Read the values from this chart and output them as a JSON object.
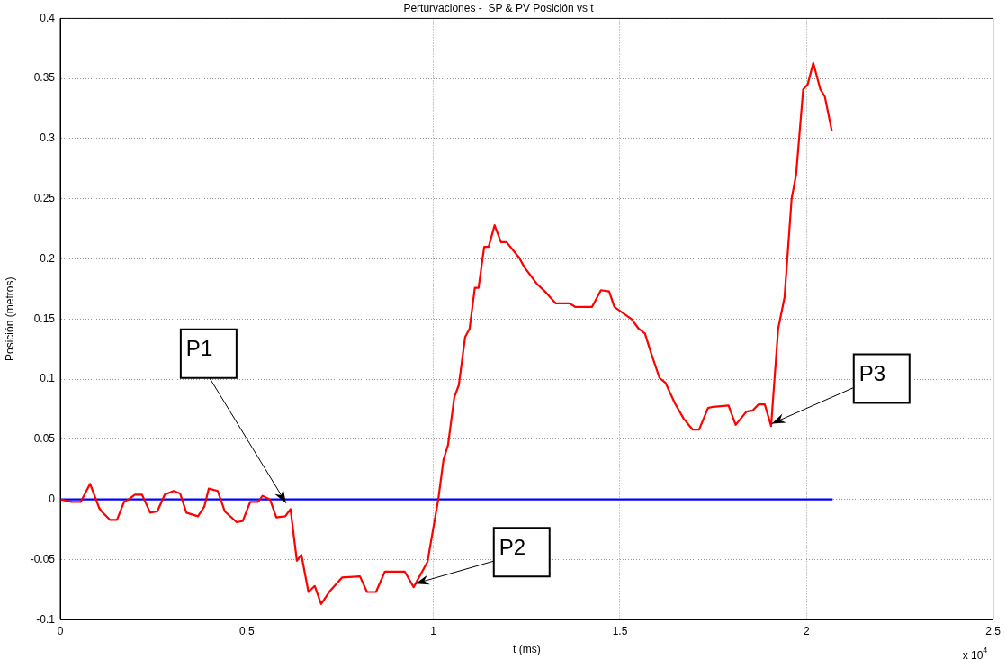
{
  "chart_data": {
    "type": "line",
    "title": "Perturvaciones -  SP & PV Posición vs t",
    "xlabel": "t (ms)",
    "ylabel": "Posición (metros)",
    "xlim": [
      0,
      2.5
    ],
    "xticks": [
      0,
      0.5,
      1,
      1.5,
      2,
      2.5
    ],
    "ylim": [
      -0.1,
      0.4
    ],
    "yticks": [
      -0.1,
      -0.05,
      0,
      0.05,
      0.1,
      0.15,
      0.2,
      0.25,
      0.3,
      0.35,
      0.4
    ],
    "grid": true,
    "marker": "none",
    "line_style": "solid",
    "annotations": [
      {
        "text": "P1",
        "x": 0.605,
        "y": -0.003
      },
      {
        "text": "P2",
        "x": 0.952,
        "y": -0.07
      },
      {
        "text": "P3",
        "x": 1.907,
        "y": 0.063
      },
      "x 10$^{4}$"
    ],
    "series": [
      {
        "color": "#ff0000",
        "x": [
          0,
          0.031,
          0.055,
          0.08,
          0.104,
          0.111,
          0.133,
          0.152,
          0.171,
          0.183,
          0.2,
          0.219,
          0.241,
          0.26,
          0.28,
          0.304,
          0.321,
          0.338,
          0.369,
          0.386,
          0.398,
          0.422,
          0.441,
          0.473,
          0.489,
          0.509,
          0.53,
          0.542,
          0.562,
          0.579,
          0.603,
          0.617,
          0.634,
          0.646,
          0.665,
          0.682,
          0.699,
          0.723,
          0.755,
          0.803,
          0.822,
          0.846,
          0.87,
          0.923,
          0.947,
          0.984,
          1.013,
          1.027,
          1.039,
          1.056,
          1.068,
          1.085,
          1.097,
          1.111,
          1.121,
          1.136,
          1.148,
          1.164,
          1.181,
          1.196,
          1.23,
          1.244,
          1.278,
          1.302,
          1.328,
          1.365,
          1.381,
          1.425,
          1.449,
          1.471,
          1.485,
          1.531,
          1.55,
          1.567,
          1.582,
          1.606,
          1.622,
          1.647,
          1.671,
          1.695,
          1.712,
          1.736,
          1.75,
          1.791,
          1.81,
          1.839,
          1.856,
          1.871,
          1.888,
          1.905,
          1.924,
          1.941,
          1.96,
          1.972,
          1.991,
          2.003,
          2.018,
          2.037,
          2.049,
          2.068
        ],
        "values": [
          0,
          -0.002,
          -0.002,
          0.013,
          -0.007,
          -0.01,
          -0.017,
          -0.017,
          -0.002,
          0,
          0.004,
          0.004,
          -0.011,
          -0.01,
          0.004,
          0.007,
          0.005,
          -0.011,
          -0.014,
          -0.006,
          0.009,
          0.007,
          -0.01,
          -0.019,
          -0.018,
          -0.002,
          -0.002,
          0.003,
          0,
          -0.015,
          -0.014,
          -0.008,
          -0.051,
          -0.046,
          -0.077,
          -0.072,
          -0.087,
          -0.076,
          -0.065,
          -0.064,
          -0.077,
          -0.077,
          -0.06,
          -0.06,
          -0.073,
          -0.052,
          0,
          0.033,
          0.045,
          0.085,
          0.095,
          0.135,
          0.142,
          0.176,
          0.176,
          0.21,
          0.21,
          0.228,
          0.214,
          0.214,
          0.201,
          0.193,
          0.179,
          0.172,
          0.163,
          0.163,
          0.16,
          0.16,
          0.174,
          0.173,
          0.16,
          0.15,
          0.142,
          0.138,
          0.123,
          0.101,
          0.097,
          0.08,
          0.067,
          0.058,
          0.058,
          0.076,
          0.077,
          0.078,
          0.062,
          0.073,
          0.074,
          0.079,
          0.079,
          0.061,
          0.142,
          0.168,
          0.25,
          0.27,
          0.341,
          0.345,
          0.363,
          0.341,
          0.335,
          0.306
        ]
      },
      {
        "color": "#0000ff",
        "x": [
          0,
          2.07
        ],
        "values": [
          0,
          0
        ]
      }
    ]
  }
}
